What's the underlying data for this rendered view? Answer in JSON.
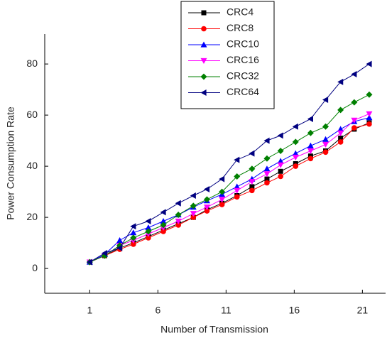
{
  "chart_data": {
    "type": "line",
    "x_label": "Number of Transmission",
    "y_label": "Power Consumption Rate",
    "x": [
      1,
      2.1,
      3.2,
      4.2,
      5.3,
      6.4,
      7.5,
      8.6,
      9.6,
      10.7,
      11.8,
      12.9,
      14,
      15,
      16.1,
      17.2,
      18.3,
      19.4,
      20.4,
      21.5
    ],
    "series": [
      {
        "name": "CRC4",
        "color": "#000000",
        "marker": "square",
        "values": [
          2.5,
          5,
          8,
          10,
          12.5,
          15,
          17.5,
          20,
          23,
          25.5,
          28.5,
          32,
          35,
          38,
          41,
          44,
          46,
          51,
          54.5,
          57
        ]
      },
      {
        "name": "CRC8",
        "color": "#ff0000",
        "marker": "circle",
        "values": [
          2.5,
          5,
          7.5,
          9.5,
          12,
          14.5,
          17,
          20,
          22.5,
          25,
          28,
          30.5,
          33.5,
          36,
          40,
          43,
          45.5,
          49.5,
          55,
          56.5
        ]
      },
      {
        "name": "CRC10",
        "color": "#0000ff",
        "marker": "triangle-up",
        "values": [
          2.5,
          5.5,
          11,
          14,
          16,
          18.5,
          21,
          24,
          26.5,
          29,
          32,
          35,
          39,
          42,
          45,
          48,
          50.5,
          54.5,
          57.5,
          59
        ]
      },
      {
        "name": "CRC16",
        "color": "#ff00ff",
        "marker": "triangle-down",
        "values": [
          2.5,
          5,
          9,
          11,
          13.5,
          16,
          18.5,
          21.5,
          24,
          27,
          30.5,
          34,
          37,
          40.5,
          43.5,
          46,
          48.5,
          53,
          58,
          60.5
        ]
      },
      {
        "name": "CRC32",
        "color": "#008000",
        "marker": "diamond",
        "values": [
          2.5,
          5,
          9,
          12,
          14.5,
          17,
          21,
          24.5,
          27,
          30,
          36,
          39,
          43,
          46,
          49.5,
          53,
          55.5,
          62,
          65,
          68
        ]
      },
      {
        "name": "CRC64",
        "color": "#000080",
        "marker": "triangle-left",
        "values": [
          2.5,
          6,
          8,
          16.5,
          18.5,
          22,
          25.5,
          28.5,
          31,
          35,
          42.5,
          45,
          50,
          52,
          55.5,
          58.5,
          66,
          73,
          76,
          80
        ]
      }
    ],
    "xlim": [
      -2.3,
      22.7
    ],
    "xticks": [
      1,
      6,
      11,
      16,
      21
    ],
    "ylim": [
      -9.7,
      91.7
    ],
    "yticks": [
      0,
      20,
      40,
      60,
      80
    ],
    "grid": false,
    "legend": "top"
  }
}
